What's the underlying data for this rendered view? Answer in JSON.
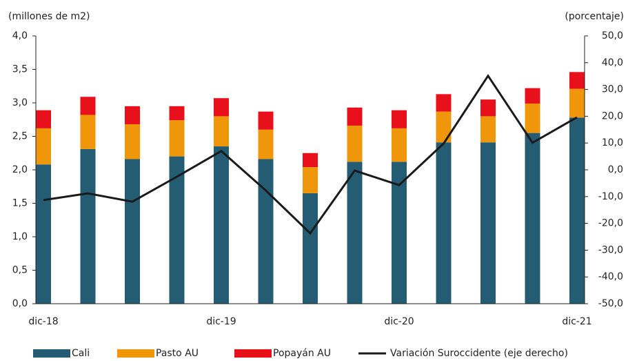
{
  "chart_data": {
    "type": "bar-line",
    "ylabel": "(millones  de m2)",
    "y2label": "(porcentaje)",
    "categories": [
      "dic-18",
      null,
      null,
      null,
      "dic-19",
      null,
      null,
      null,
      "dic-20",
      null,
      null,
      null,
      "dic-21"
    ],
    "series": [
      {
        "name": "Cali",
        "color": "#245c73",
        "type": "bar",
        "values": [
          2.08,
          2.31,
          2.16,
          2.2,
          2.35,
          2.16,
          1.65,
          2.12,
          2.12,
          2.41,
          2.41,
          2.55,
          2.78
        ]
      },
      {
        "name": "Pasto AU",
        "color": "#f0960a",
        "type": "bar",
        "values": [
          0.54,
          0.51,
          0.52,
          0.54,
          0.45,
          0.44,
          0.39,
          0.54,
          0.5,
          0.46,
          0.39,
          0.44,
          0.43
        ]
      },
      {
        "name": "Popayán AU",
        "color": "#e8101a",
        "type": "bar",
        "values": [
          0.27,
          0.27,
          0.27,
          0.21,
          0.27,
          0.27,
          0.21,
          0.27,
          0.27,
          0.26,
          0.25,
          0.23,
          0.25
        ]
      },
      {
        "name": "Variación Suroccidente (eje derecho)",
        "color": "#1a1a1a",
        "type": "line",
        "axis": "y2",
        "values": [
          -11.3,
          -8.8,
          -11.9,
          -2.6,
          7.0,
          -7.7,
          -23.7,
          -0.3,
          -5.7,
          9.8,
          35.1,
          10.1,
          19.6
        ]
      }
    ],
    "ylim": [
      0,
      4
    ],
    "yticks": [
      {
        "value": 0,
        "label": "0,0"
      },
      {
        "value": 0.5,
        "label": "0,5"
      },
      {
        "value": 1,
        "label": "1,0"
      },
      {
        "value": 1.5,
        "label": "1,5"
      },
      {
        "value": 2,
        "label": "2,0"
      },
      {
        "value": 2.5,
        "label": "2,5"
      },
      {
        "value": 3,
        "label": "3,0"
      },
      {
        "value": 3.5,
        "label": "3,5"
      },
      {
        "value": 4,
        "label": "4,0"
      }
    ],
    "y2lim": [
      -50,
      50
    ],
    "y2ticks": [
      {
        "value": -50,
        "label": "-50,0"
      },
      {
        "value": -40,
        "label": "-40,0"
      },
      {
        "value": -30,
        "label": "-30,0"
      },
      {
        "value": -20,
        "label": "-20,0"
      },
      {
        "value": -10,
        "label": "-10,0"
      },
      {
        "value": 0,
        "label": "0,0"
      },
      {
        "value": 10,
        "label": "10,0"
      },
      {
        "value": 20,
        "label": "20,0"
      },
      {
        "value": 30,
        "label": "30,0"
      },
      {
        "value": 40,
        "label": "40,0"
      },
      {
        "value": 50,
        "label": "50,0"
      }
    ]
  }
}
